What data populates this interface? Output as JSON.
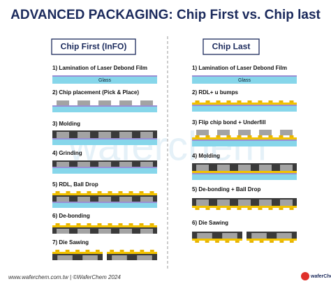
{
  "title": "ADVANCED PACKAGING: Chip First vs. Chip last",
  "watermark": "waferchem",
  "columns": [
    {
      "heading": "Chip First (InFO)",
      "steps": [
        {
          "label": "1) Lamination of Laser Debond Film",
          "layer_label": "Glass"
        },
        {
          "label": "2) Chip placement (Pick & Place)"
        },
        {
          "label": "3) Molding"
        },
        {
          "label": "4) Grinding"
        },
        {
          "label": "5) RDL, Ball Drop"
        },
        {
          "label": "6) De-bonding"
        },
        {
          "label": "7) Die Sawing"
        }
      ]
    },
    {
      "heading": "Chip Last",
      "steps": [
        {
          "label": "1) Lamination of Laser Debond Film",
          "layer_label": "Glass"
        },
        {
          "label": "2) RDL+ u bumps"
        },
        {
          "label": "3) Flip chip bond + Underfill"
        },
        {
          "label": "4) Molding"
        },
        {
          "label": "5) De-bonding + Ball Drop"
        },
        {
          "label": "6) Die Sawing"
        }
      ]
    }
  ],
  "footer": "www.waferchem.com.tw | ©WaferChem 2024",
  "logo": "waferChem"
}
